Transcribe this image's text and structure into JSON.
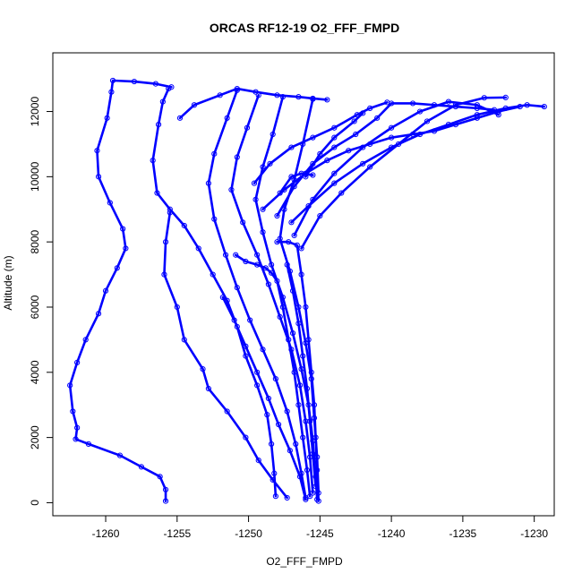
{
  "chart_data": {
    "type": "scatter",
    "title": "ORCAS RF12-19 O2_FFF_FMPD",
    "xlabel": "O2_FFF_FMPD",
    "ylabel": "Altitude (m)",
    "xlim": [
      -1263.7,
      -1228.6
    ],
    "ylim": [
      -400,
      13800
    ],
    "xticks": [
      -1260,
      -1255,
      -1250,
      -1245,
      -1240,
      -1235,
      -1230
    ],
    "yticks": [
      0,
      2000,
      4000,
      6000,
      8000,
      10000,
      12000
    ],
    "xtick_labels": [
      "-1260",
      "-1255",
      "-1250",
      "-1245",
      "-1240",
      "-1235",
      "-1230"
    ],
    "ytick_labels": [
      "0",
      "2000",
      "4000",
      "6000",
      "8000",
      "10000",
      "12000"
    ],
    "grid": false,
    "marker": "open-circle",
    "color": "#0000ff",
    "series": [
      {
        "points": [
          [
            -1255.8,
            50
          ],
          [
            -1255.8,
            400
          ],
          [
            -1256.2,
            800
          ],
          [
            -1257.5,
            1100
          ],
          [
            -1259.0,
            1450
          ],
          [
            -1261.2,
            1800
          ],
          [
            -1262.1,
            1950
          ],
          [
            -1262.0,
            2300
          ],
          [
            -1262.3,
            2800
          ],
          [
            -1262.5,
            3600
          ],
          [
            -1262.0,
            4300
          ],
          [
            -1261.4,
            5000
          ],
          [
            -1260.5,
            5800
          ],
          [
            -1260.0,
            6500
          ],
          [
            -1259.2,
            7200
          ],
          [
            -1258.6,
            7800
          ],
          [
            -1258.8,
            8400
          ],
          [
            -1259.7,
            9200
          ],
          [
            -1260.5,
            10000
          ],
          [
            -1260.6,
            10800
          ],
          [
            -1259.9,
            11800
          ],
          [
            -1259.6,
            12600
          ],
          [
            -1259.5,
            12950
          ],
          [
            -1258.0,
            12920
          ],
          [
            -1256.5,
            12850
          ],
          [
            -1255.4,
            12750
          ]
        ]
      },
      {
        "points": [
          [
            -1255.6,
            12700
          ],
          [
            -1256.0,
            12300
          ],
          [
            -1256.3,
            11600
          ],
          [
            -1256.7,
            10500
          ],
          [
            -1256.4,
            9500
          ],
          [
            -1255.5,
            9000
          ],
          [
            -1254.5,
            8500
          ],
          [
            -1253.5,
            7800
          ],
          [
            -1252.5,
            7000
          ],
          [
            -1251.5,
            6200
          ],
          [
            -1250.8,
            5400
          ],
          [
            -1250.2,
            4500
          ],
          [
            -1249.4,
            3600
          ],
          [
            -1248.7,
            2700
          ],
          [
            -1248.4,
            1800
          ],
          [
            -1248.2,
            900
          ],
          [
            -1248.1,
            200
          ]
        ]
      },
      {
        "points": [
          [
            -1255.5,
            8900
          ],
          [
            -1255.8,
            8000
          ],
          [
            -1255.9,
            7000
          ],
          [
            -1255.0,
            6000
          ],
          [
            -1254.5,
            5000
          ],
          [
            -1253.2,
            4100
          ],
          [
            -1252.8,
            3500
          ],
          [
            -1251.5,
            2800
          ],
          [
            -1250.2,
            2000
          ],
          [
            -1249.3,
            1300
          ],
          [
            -1248.3,
            700
          ],
          [
            -1247.3,
            150
          ]
        ]
      },
      {
        "points": [
          [
            -1254.8,
            11800
          ],
          [
            -1253.8,
            12200
          ],
          [
            -1252.0,
            12500
          ],
          [
            -1250.8,
            12700
          ],
          [
            -1249.5,
            12600
          ],
          [
            -1248.0,
            12500
          ],
          [
            -1246.5,
            12450
          ],
          [
            -1245.5,
            12400
          ],
          [
            -1244.5,
            12360
          ]
        ]
      },
      {
        "points": [
          [
            -1250.8,
            12650
          ],
          [
            -1251.5,
            11800
          ],
          [
            -1252.4,
            10700
          ],
          [
            -1252.8,
            9800
          ],
          [
            -1252.4,
            8700
          ],
          [
            -1251.6,
            7600
          ],
          [
            -1250.8,
            6600
          ],
          [
            -1249.9,
            5600
          ],
          [
            -1249.0,
            4700
          ],
          [
            -1248.1,
            3800
          ],
          [
            -1247.3,
            2800
          ],
          [
            -1246.7,
            1800
          ],
          [
            -1246.3,
            900
          ],
          [
            -1246.0,
            150
          ]
        ]
      },
      {
        "points": [
          [
            -1249.3,
            12500
          ],
          [
            -1250.1,
            11500
          ],
          [
            -1250.8,
            10600
          ],
          [
            -1251.2,
            9600
          ],
          [
            -1250.4,
            8600
          ],
          [
            -1249.4,
            7600
          ],
          [
            -1248.6,
            6700
          ],
          [
            -1247.8,
            5700
          ],
          [
            -1247.0,
            4700
          ],
          [
            -1246.4,
            3600
          ],
          [
            -1246.0,
            2500
          ],
          [
            -1245.7,
            1400
          ],
          [
            -1245.5,
            300
          ]
        ]
      },
      {
        "points": [
          [
            -1247.6,
            12450
          ],
          [
            -1248.3,
            11300
          ],
          [
            -1249.0,
            10300
          ],
          [
            -1249.5,
            9300
          ],
          [
            -1249.0,
            8300
          ],
          [
            -1248.4,
            7300
          ],
          [
            -1247.6,
            6300
          ],
          [
            -1246.9,
            5200
          ],
          [
            -1246.3,
            4100
          ],
          [
            -1245.8,
            3000
          ],
          [
            -1245.5,
            1900
          ],
          [
            -1245.3,
            800
          ],
          [
            -1245.2,
            100
          ]
        ]
      },
      {
        "points": [
          [
            -1245.5,
            12380
          ],
          [
            -1246.2,
            11000
          ],
          [
            -1246.8,
            9900
          ],
          [
            -1247.5,
            9000
          ],
          [
            -1247.8,
            8100
          ],
          [
            -1247.1,
            7100
          ],
          [
            -1246.5,
            6000
          ],
          [
            -1246.0,
            4900
          ],
          [
            -1245.6,
            3800
          ],
          [
            -1245.4,
            2600
          ],
          [
            -1245.2,
            1400
          ],
          [
            -1245.1,
            300
          ]
        ]
      },
      {
        "points": [
          [
            -1250.9,
            7600
          ],
          [
            -1250.2,
            7400
          ],
          [
            -1249.4,
            7300
          ],
          [
            -1248.8,
            7200
          ],
          [
            -1248.4,
            7050
          ],
          [
            -1248.0,
            6800
          ],
          [
            -1247.6,
            6000
          ],
          [
            -1247.2,
            5000
          ],
          [
            -1246.8,
            4000
          ],
          [
            -1246.5,
            3000
          ],
          [
            -1246.2,
            2000
          ],
          [
            -1245.9,
            1000
          ],
          [
            -1245.7,
            200
          ]
        ]
      },
      {
        "points": [
          [
            -1251.8,
            6300
          ],
          [
            -1251.0,
            5600
          ],
          [
            -1250.2,
            4800
          ],
          [
            -1249.4,
            4000
          ],
          [
            -1248.6,
            3200
          ],
          [
            -1247.9,
            2400
          ],
          [
            -1247.1,
            1600
          ],
          [
            -1246.4,
            800
          ],
          [
            -1246.0,
            100
          ]
        ]
      },
      {
        "points": [
          [
            -1248.0,
            8000
          ],
          [
            -1247.2,
            8000
          ],
          [
            -1246.6,
            7900
          ],
          [
            -1246.3,
            7000
          ],
          [
            -1246.0,
            6000
          ],
          [
            -1245.8,
            5000
          ],
          [
            -1245.6,
            4000
          ],
          [
            -1245.4,
            3000
          ],
          [
            -1245.3,
            2000
          ],
          [
            -1245.2,
            1000
          ],
          [
            -1245.1,
            50
          ]
        ]
      },
      {
        "points": [
          [
            -1247.3,
            7300
          ],
          [
            -1246.9,
            6500
          ],
          [
            -1246.5,
            5500
          ],
          [
            -1246.2,
            4500
          ],
          [
            -1245.9,
            3500
          ],
          [
            -1245.7,
            2500
          ],
          [
            -1245.5,
            1500
          ],
          [
            -1245.3,
            500
          ]
        ]
      },
      {
        "points": [
          [
            -1246.3,
            7800
          ],
          [
            -1245.0,
            8800
          ],
          [
            -1243.5,
            9500
          ],
          [
            -1241.5,
            10300
          ],
          [
            -1239.5,
            11000
          ],
          [
            -1237.5,
            11700
          ],
          [
            -1235.5,
            12200
          ],
          [
            -1233.5,
            12420
          ],
          [
            -1232.0,
            12430
          ]
        ]
      },
      {
        "points": [
          [
            -1246.8,
            8200
          ],
          [
            -1245.5,
            9300
          ],
          [
            -1244.0,
            10100
          ],
          [
            -1242.0,
            10900
          ],
          [
            -1240.0,
            11500
          ],
          [
            -1238.0,
            12000
          ],
          [
            -1236.0,
            12300
          ],
          [
            -1234.0,
            12200
          ],
          [
            -1232.5,
            11900
          ]
        ]
      },
      {
        "points": [
          [
            -1247.0,
            8600
          ],
          [
            -1245.8,
            9100
          ],
          [
            -1244.0,
            9800
          ],
          [
            -1242.0,
            10400
          ],
          [
            -1240.0,
            10900
          ],
          [
            -1238.0,
            11300
          ],
          [
            -1236.0,
            11600
          ],
          [
            -1234.0,
            11900
          ],
          [
            -1232.0,
            12100
          ],
          [
            -1230.5,
            12200
          ],
          [
            -1229.3,
            12150
          ]
        ]
      },
      {
        "points": [
          [
            -1247.8,
            9500
          ],
          [
            -1247.0,
            10000
          ],
          [
            -1246.3,
            10100
          ],
          [
            -1245.5,
            10050
          ]
        ]
      },
      {
        "points": [
          [
            -1248.0,
            8800
          ],
          [
            -1246.8,
            9700
          ],
          [
            -1245.5,
            10400
          ],
          [
            -1244.0,
            10900
          ],
          [
            -1242.5,
            11300
          ],
          [
            -1241.0,
            11800
          ],
          [
            -1240.0,
            12250
          ],
          [
            -1238.5,
            12250
          ],
          [
            -1237.0,
            12200
          ],
          [
            -1235.5,
            12150
          ],
          [
            -1234.0,
            12100
          ],
          [
            -1232.8,
            12050
          ]
        ]
      },
      {
        "points": [
          [
            -1249.6,
            9800
          ],
          [
            -1248.5,
            10400
          ],
          [
            -1247.0,
            10900
          ],
          [
            -1245.5,
            11200
          ],
          [
            -1244.0,
            11500
          ],
          [
            -1242.4,
            11900
          ],
          [
            -1241.5,
            12100
          ],
          [
            -1240.3,
            12280
          ]
        ]
      },
      {
        "points": [
          [
            -1249.0,
            9000
          ],
          [
            -1247.5,
            9600
          ],
          [
            -1246.0,
            10100
          ],
          [
            -1244.5,
            10500
          ],
          [
            -1243.0,
            10800
          ],
          [
            -1241.5,
            11000
          ],
          [
            -1240.0,
            11200
          ],
          [
            -1238.5,
            11300
          ],
          [
            -1237.0,
            11400
          ],
          [
            -1235.5,
            11600
          ],
          [
            -1234.0,
            11800
          ],
          [
            -1232.5,
            12000
          ],
          [
            -1231.0,
            12150
          ]
        ]
      },
      {
        "points": [
          [
            -1246.0,
            10000
          ],
          [
            -1245.0,
            10700
          ],
          [
            -1244.0,
            11200
          ],
          [
            -1242.6,
            11700
          ],
          [
            -1242.0,
            11950
          ]
        ]
      }
    ]
  }
}
